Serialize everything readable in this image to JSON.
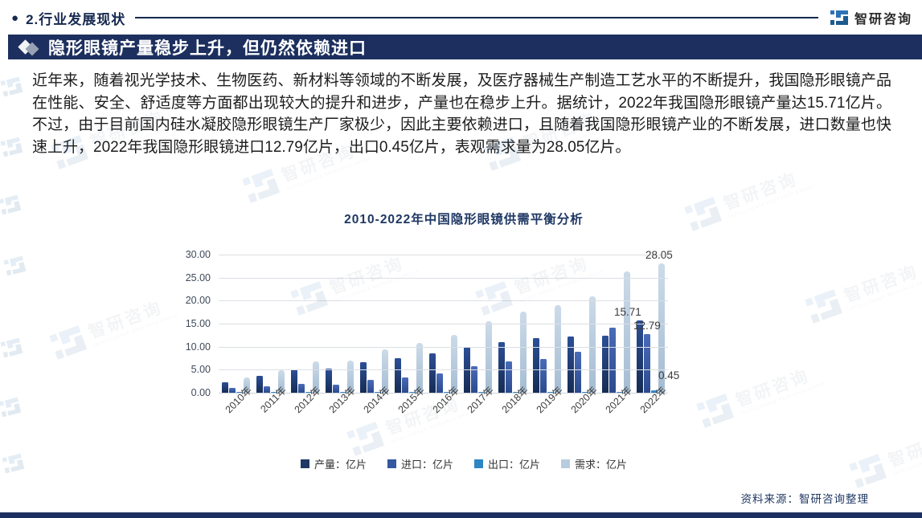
{
  "header": {
    "bullet": "●",
    "section_title": "2.行业发展现状",
    "logo_text": "智研咨询"
  },
  "banner": {
    "title": "隐形眼镜产量稳步上升，但仍然依赖进口"
  },
  "paragraph": "近年来，随着视光学技术、生物医药、新材料等领域的不断发展，及医疗器械生产制造工艺水平的不断提升，我国隐形眼镜产品在性能、安全、舒适度等方面都出现较大的提升和进步，产量也在稳步上升。据统计，2022年我国隐形眼镜产量达15.71亿片。不过，由于目前国内硅水凝胶隐形眼镜生产厂家极少，因此主要依赖进口，且随着我国隐形眼镜产业的不断发展，进口数量也快速上升，2022年我国隐形眼镜进口12.79亿片，出口0.45亿片，表观需求量为28.05亿片。",
  "chart_data": {
    "type": "bar",
    "title": "2010-2022年中国隐形眼镜供需平衡分析",
    "categories": [
      "2010年",
      "2011年",
      "2012年",
      "2013年",
      "2014年",
      "2015年",
      "2016年",
      "2017年",
      "2018年",
      "2019年",
      "2020年",
      "2021年",
      "2022年"
    ],
    "series": [
      {
        "name": "产量：亿片",
        "color": "#1f3864",
        "values": [
          2.3,
          3.6,
          5.0,
          5.3,
          6.7,
          7.5,
          8.5,
          10.0,
          11.0,
          11.8,
          12.2,
          12.4,
          15.71
        ]
      },
      {
        "name": "进口：亿片",
        "color": "#33589f",
        "values": [
          1.0,
          1.4,
          1.9,
          1.8,
          2.8,
          3.4,
          4.2,
          5.7,
          6.8,
          7.4,
          8.9,
          14.2,
          12.79
        ]
      },
      {
        "name": "出口：亿片",
        "color": "#2d86c4",
        "values": [
          0.05,
          0.06,
          0.07,
          0.08,
          0.1,
          0.1,
          0.12,
          0.15,
          0.15,
          0.15,
          0.2,
          0.25,
          0.45
        ]
      },
      {
        "name": "需求：亿片",
        "color": "#b8ccdf",
        "values": [
          3.25,
          4.94,
          6.83,
          7.02,
          9.4,
          10.8,
          12.62,
          15.55,
          17.65,
          19.05,
          20.9,
          26.35,
          28.05
        ]
      }
    ],
    "ylim": [
      0,
      30
    ],
    "yticks": [
      "30.00",
      "25.00",
      "20.00",
      "15.00",
      "10.00",
      "5.00",
      "0.00"
    ],
    "grid": true,
    "legend_position": "bottom",
    "callouts": [
      {
        "text": "28.05",
        "series": 3,
        "category_index": 12
      },
      {
        "text": "15.71",
        "series": 0,
        "category_index": 12
      },
      {
        "text": "12.79",
        "series": 1,
        "category_index": 12
      },
      {
        "text": "0.45",
        "series": 2,
        "category_index": 12
      }
    ]
  },
  "source": {
    "label": "资料来源：智研咨询整理"
  },
  "watermark": {
    "text": "智研咨询",
    "subtext": "INTELLIGENCE RESEARCH GROUP"
  }
}
